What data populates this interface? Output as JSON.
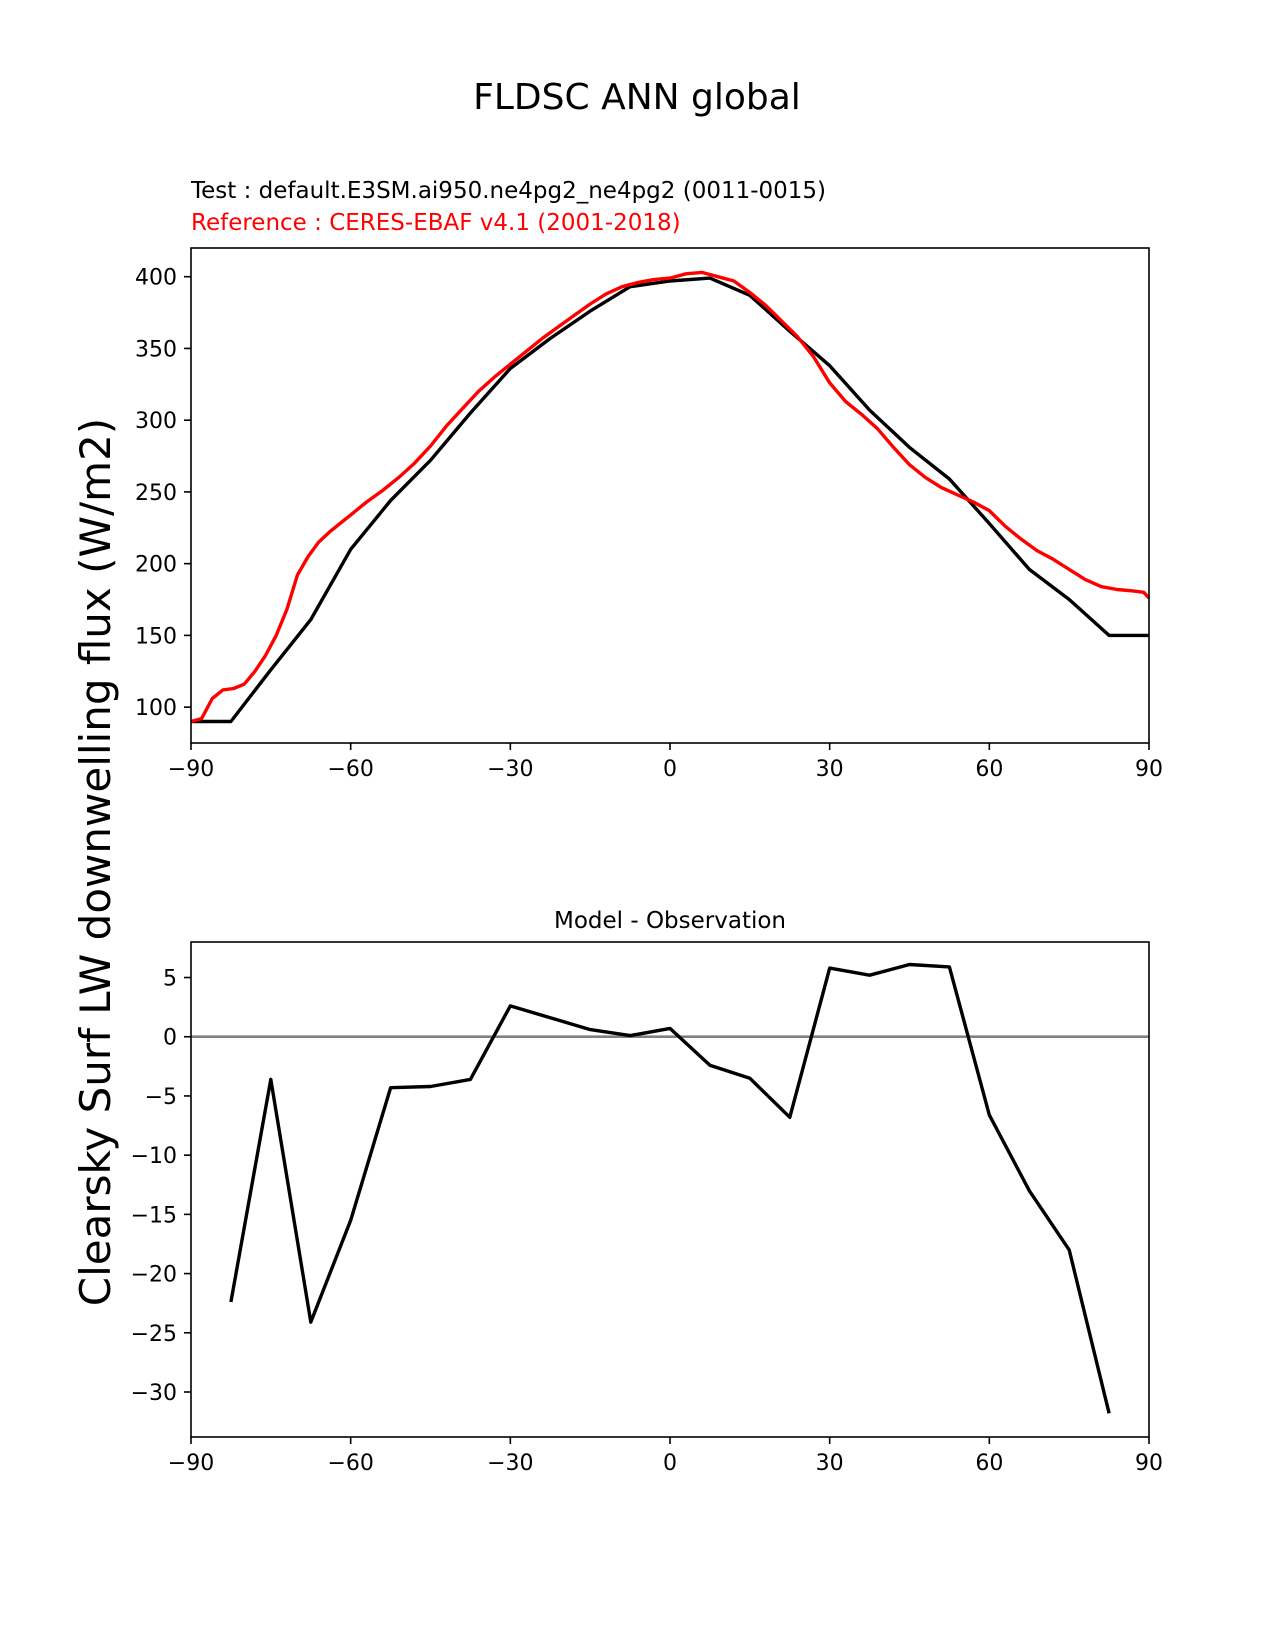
{
  "figure_title": "FLDSC ANN global",
  "chart_data": [
    {
      "type": "line",
      "test_label": "Test : default.E3SM.ai950.ne4pg2_ne4pg2 (0011-0015)",
      "reference_label": "Reference : CERES-EBAF v4.1 (2001-2018)",
      "ylabel": "Clearsky Surf LW downwelling flux (W/m2)",
      "xlim": [
        -90,
        90
      ],
      "ylim": [
        75,
        420
      ],
      "xticks": [
        -90,
        -60,
        -30,
        0,
        30,
        60,
        90
      ],
      "xtick_labels": [
        "−90",
        "−60",
        "−30",
        "0",
        "30",
        "60",
        "90"
      ],
      "yticks": [
        100,
        150,
        200,
        250,
        300,
        350,
        400
      ],
      "ytick_labels": [
        "100",
        "150",
        "200",
        "250",
        "300",
        "350",
        "400"
      ],
      "series": [
        {
          "name": "Test",
          "color": "#000000",
          "x": [
            -90,
            -82.5,
            -75,
            -67.5,
            -60,
            -52.5,
            -45,
            -37.5,
            -30,
            -22.5,
            -15,
            -7.5,
            0,
            7.5,
            15,
            22.5,
            30,
            37.5,
            45,
            52.5,
            60,
            67.5,
            75,
            82.5,
            90
          ],
          "y": [
            90,
            90,
            126,
            161,
            210,
            244,
            272,
            305,
            336,
            357,
            376,
            393,
            397,
            399,
            387,
            362,
            338,
            307,
            281,
            259,
            228,
            196,
            175,
            150,
            150
          ]
        },
        {
          "name": "Reference",
          "color": "#ff0000",
          "x": [
            -90,
            -88,
            -86,
            -84,
            -82,
            -80,
            -78,
            -76,
            -74,
            -72,
            -70,
            -68,
            -66,
            -64,
            -62,
            -60,
            -57,
            -54,
            -51,
            -48,
            -45,
            -42,
            -39,
            -36,
            -33,
            -30,
            -27,
            -24,
            -21,
            -18,
            -15,
            -12,
            -9,
            -6,
            -3,
            0,
            3,
            6,
            9,
            12,
            15,
            18,
            21,
            24,
            27,
            30,
            33,
            36,
            39,
            42,
            45,
            48,
            51,
            54,
            57,
            60,
            63,
            66,
            69,
            72,
            75,
            78,
            81,
            84,
            87,
            89,
            90
          ],
          "y": [
            90,
            92,
            106,
            112,
            113,
            116,
            125,
            136,
            150,
            168,
            192,
            205,
            215,
            222,
            228,
            234,
            243,
            251,
            260,
            270,
            282,
            296,
            308,
            320,
            330,
            339,
            348,
            357,
            365,
            373,
            381,
            388,
            393,
            396,
            398,
            399,
            402,
            403,
            400,
            397,
            389,
            380,
            369,
            358,
            344,
            326,
            313,
            304,
            294,
            281,
            269,
            260,
            253,
            248,
            243,
            237,
            226,
            217,
            209,
            203,
            196,
            189,
            184,
            182,
            181,
            180,
            176
          ]
        }
      ]
    },
    {
      "type": "line",
      "title": "Model - Observation",
      "xlim": [
        -90,
        90
      ],
      "ylim": [
        -33.8,
        8
      ],
      "xticks": [
        -90,
        -60,
        -30,
        0,
        30,
        60,
        90
      ],
      "xtick_labels": [
        "−90",
        "−60",
        "−30",
        "0",
        "30",
        "60",
        "90"
      ],
      "yticks": [
        5,
        0,
        -5,
        -10,
        -15,
        -20,
        -25,
        -30
      ],
      "ytick_labels": [
        "5",
        "0",
        "−5",
        "−10",
        "−15",
        "−20",
        "−25",
        "−30"
      ],
      "zero_line_color": "#808080",
      "series": [
        {
          "name": "Model - Observation",
          "color": "#000000",
          "x": [
            -82.5,
            -75,
            -67.5,
            -60,
            -52.5,
            -45,
            -37.5,
            -30,
            -22.5,
            -15,
            -7.5,
            0,
            7.5,
            15,
            22.5,
            30,
            37.5,
            45,
            52.5,
            60,
            67.5,
            75,
            82.5
          ],
          "y": [
            -22.4,
            -3.6,
            -24.1,
            -15.5,
            -4.3,
            -4.2,
            -3.6,
            2.6,
            1.6,
            0.6,
            0.1,
            0.7,
            -2.4,
            -3.5,
            -6.8,
            5.8,
            5.2,
            6.1,
            5.9,
            -6.6,
            -13.0,
            -18.0,
            -31.8
          ]
        }
      ]
    }
  ]
}
